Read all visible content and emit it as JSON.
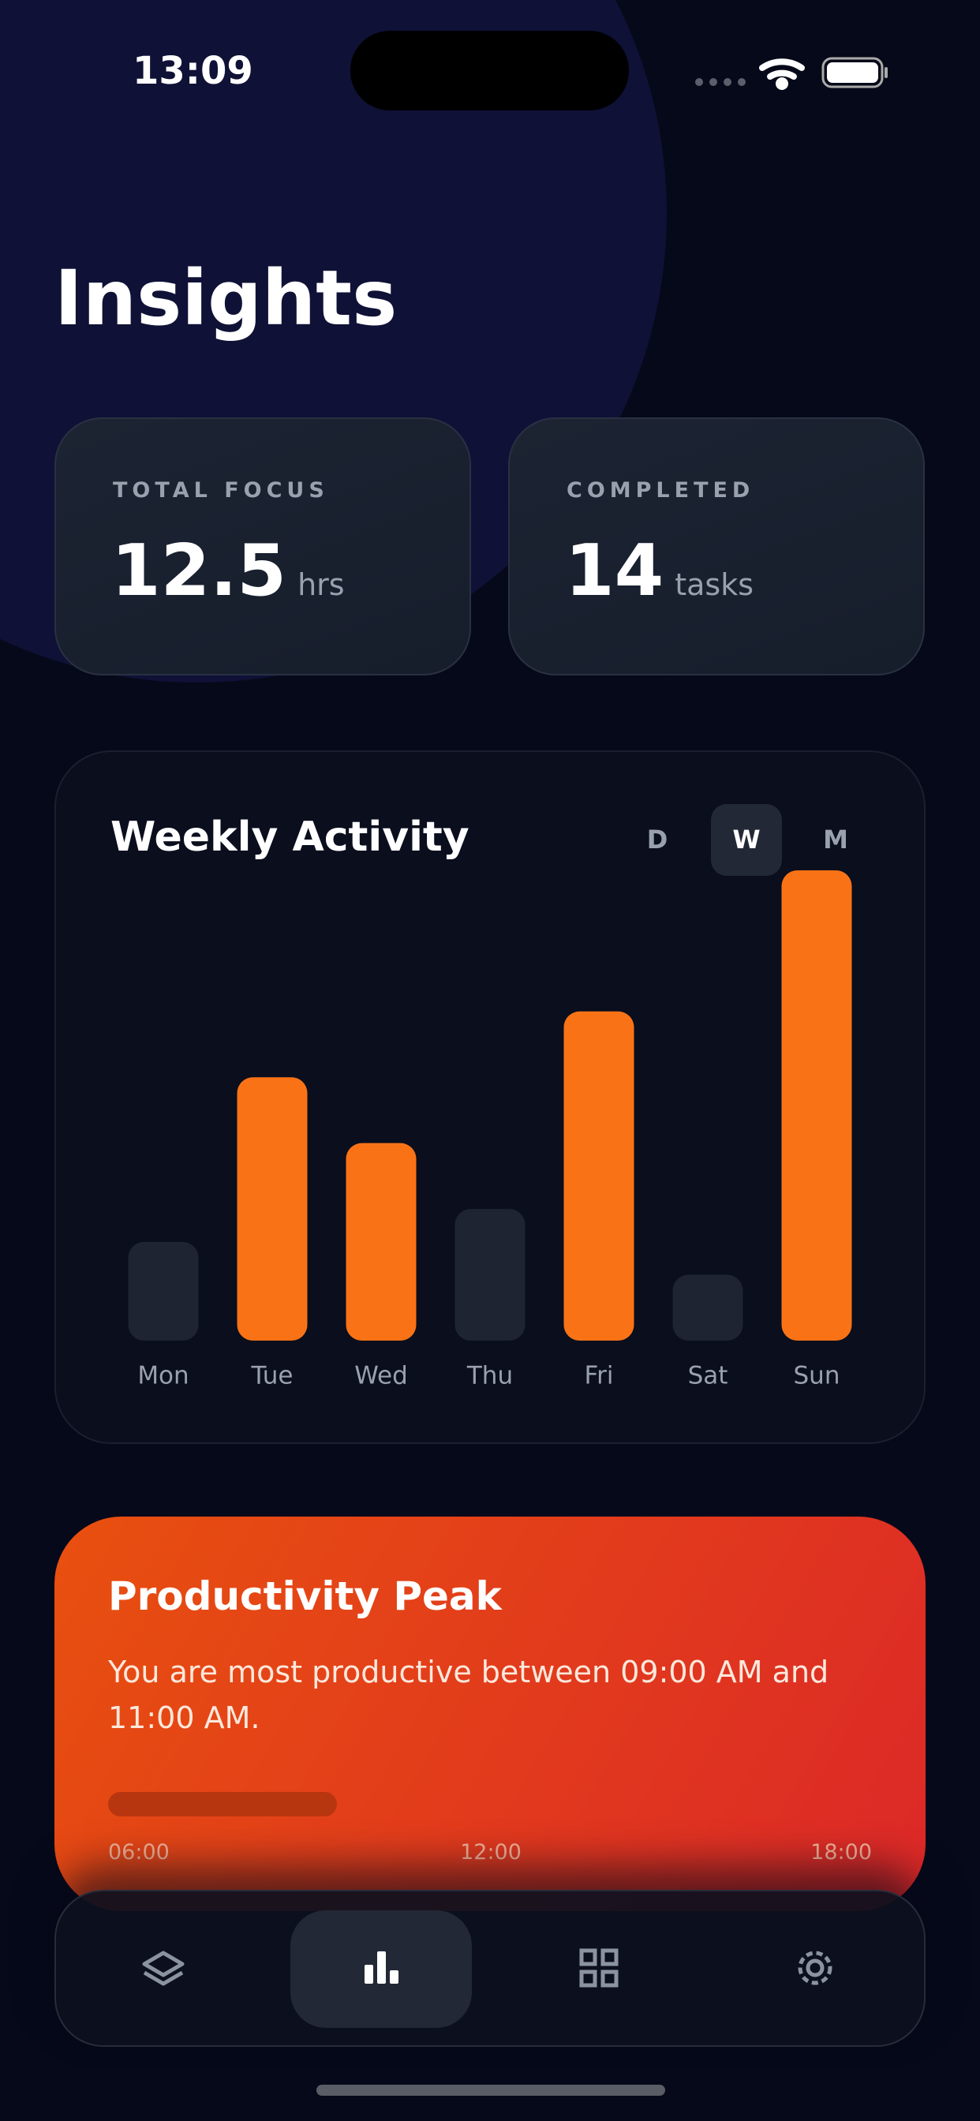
{
  "status_bar": {
    "time": "13:09"
  },
  "header": {
    "title": "Insights"
  },
  "stats": [
    {
      "label": "TOTAL FOCUS",
      "value": "12.5",
      "unit": "hrs"
    },
    {
      "label": "COMPLETED",
      "value": "14",
      "unit": "tasks"
    }
  ],
  "chart_data": {
    "type": "bar",
    "title": "Weekly Activity",
    "period_options": [
      "D",
      "W",
      "M"
    ],
    "selected_period": 1,
    "categories": [
      "Mon",
      "Tue",
      "Wed",
      "Thu",
      "Fri",
      "Sat",
      "Sun"
    ],
    "values": [
      21,
      56,
      42,
      28,
      70,
      14,
      100
    ],
    "colors": [
      "#1e2432",
      "#f97316",
      "#f97316",
      "#1e2432",
      "#f97316",
      "#1e2432",
      "#f97316"
    ],
    "ylim": [
      0,
      100
    ],
    "grid": false
  },
  "insight": {
    "title": "Productivity Peak",
    "text": "You are most productive between 09:00 AM and 11:00 AM.",
    "timeline_labels": [
      "06:00",
      "12:00",
      "18:00"
    ]
  }
}
